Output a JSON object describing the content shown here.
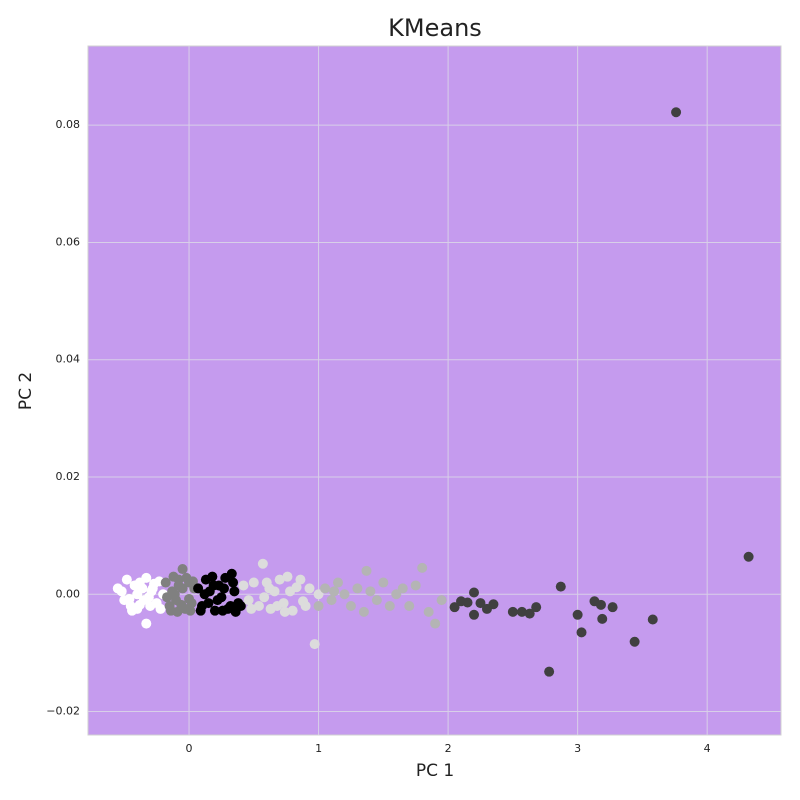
{
  "chart_data": {
    "type": "scatter",
    "title": "KMeans",
    "x_label": "PC 1",
    "y_label": "PC 2",
    "background": "#c59bee",
    "grid": true,
    "xlim": [
      -0.78,
      4.57
    ],
    "ylim": [
      -0.024,
      0.0935
    ],
    "xticks": [
      0,
      1,
      2,
      3,
      4
    ],
    "yticks": [
      {
        "value": -0.02,
        "label": "−0.02"
      },
      {
        "value": 0,
        "label": "0.00"
      },
      {
        "value": 0.02,
        "label": "0.02"
      },
      {
        "value": 0.04,
        "label": "0.04"
      },
      {
        "value": 0.06,
        "label": "0.06"
      },
      {
        "value": 0.08,
        "label": "0.08"
      }
    ],
    "series": [
      {
        "color": "#ffffff",
        "x": [
          -0.55,
          -0.5,
          -0.48,
          -0.45,
          -0.42,
          -0.4,
          -0.38,
          -0.35,
          -0.33,
          -0.3,
          -0.28,
          -0.25,
          -0.23,
          -0.2,
          -0.52,
          -0.46,
          -0.4,
          -0.36,
          -0.31,
          -0.27,
          -0.22,
          -0.33,
          -0.44,
          -0.38,
          -0.29
        ],
        "values": [
          0.001,
          -0.001,
          0.0025,
          -0.002,
          0.0015,
          -0.0025,
          0.002,
          -0.001,
          0.0028,
          -0.002,
          0.001,
          -0.0015,
          0.0022,
          0,
          0.0005,
          -0.0008,
          0,
          0.001,
          -0.0005,
          0.0018,
          -0.0025,
          -0.005,
          -0.0028,
          -0.0018,
          0.0005
        ]
      },
      {
        "color": "#808080",
        "x": [
          -0.18,
          -0.15,
          -0.12,
          -0.1,
          -0.08,
          -0.05,
          -0.03,
          0,
          0.02,
          0.04,
          -0.17,
          -0.13,
          -0.09,
          -0.06,
          -0.02,
          0.01,
          0.03,
          -0.11,
          -0.05,
          -0.14,
          -0.08,
          0
        ],
        "values": [
          0.002,
          -0.002,
          0.003,
          -0.001,
          0.0015,
          0.0043,
          -0.0025,
          0.002,
          -0.0015,
          0.001,
          -0.0005,
          0.0005,
          -0.003,
          -0.0018,
          0.0028,
          -0.0028,
          0.0022,
          0,
          0.001,
          -0.0028,
          0.0025,
          -0.0008
        ]
      },
      {
        "color": "#000000",
        "x": [
          0.07,
          0.1,
          0.13,
          0.15,
          0.18,
          0.2,
          0.23,
          0.25,
          0.28,
          0.3,
          0.33,
          0.35,
          0.38,
          0.4,
          0.09,
          0.16,
          0.22,
          0.27,
          0.32,
          0.12,
          0.19,
          0.26,
          0.34,
          0.36
        ],
        "values": [
          0.001,
          -0.002,
          0.0025,
          -0.0015,
          0.003,
          -0.0028,
          0.0015,
          -0.0005,
          0.0028,
          -0.0025,
          0.0035,
          0.0005,
          -0.0015,
          -0.002,
          -0.0028,
          0.0005,
          -0.001,
          0.001,
          -0.002,
          0,
          0.0015,
          -0.0028,
          0.002,
          -0.003
        ]
      },
      {
        "color": "#dcdcdc",
        "x": [
          0.42,
          0.46,
          0.5,
          0.54,
          0.57,
          0.6,
          0.63,
          0.66,
          0.7,
          0.73,
          0.76,
          0.8,
          0.83,
          0.86,
          0.9,
          0.93,
          0.97,
          1.0,
          0.48,
          0.58,
          0.68,
          0.78,
          0.88,
          0.62,
          0.74
        ],
        "values": [
          0.0015,
          -0.001,
          0.002,
          -0.002,
          0.0052,
          0.002,
          -0.0025,
          0.0005,
          0.0025,
          -0.0015,
          0.003,
          -0.0028,
          0.0012,
          0.0025,
          -0.002,
          0.001,
          -0.0085,
          0,
          -0.0025,
          -0.0005,
          -0.002,
          0.0005,
          -0.0012,
          0.001,
          -0.003
        ]
      },
      {
        "color": "#b4b4b4",
        "x": [
          1.0,
          1.05,
          1.1,
          1.12,
          1.15,
          1.2,
          1.25,
          1.3,
          1.35,
          1.37,
          1.4,
          1.45,
          1.5,
          1.55,
          1.6,
          1.65,
          1.7,
          1.75,
          1.8,
          1.85,
          1.9,
          1.95
        ],
        "values": [
          -0.002,
          0.001,
          -0.001,
          0.0005,
          0.002,
          0,
          -0.002,
          0.001,
          -0.003,
          0.004,
          0.0005,
          -0.001,
          0.002,
          -0.002,
          0,
          0.001,
          -0.002,
          0.0015,
          0.0045,
          -0.003,
          -0.005,
          -0.001
        ]
      },
      {
        "color": "#404040",
        "x": [
          3.76,
          4.32,
          2.87,
          2.05,
          2.1,
          2.15,
          2.2,
          2.25,
          2.3,
          2.35,
          2.2,
          2.5,
          2.57,
          2.63,
          2.68,
          2.78,
          3.0,
          3.03,
          3.13,
          3.18,
          3.19,
          3.27,
          3.44,
          3.58
        ],
        "values": [
          0.0822,
          0.0064,
          0.0013,
          -0.0022,
          -0.0012,
          -0.0014,
          0.0003,
          -0.0015,
          -0.0025,
          -0.0017,
          -0.0035,
          -0.003,
          -0.003,
          -0.0033,
          -0.0022,
          -0.0132,
          -0.0035,
          -0.0065,
          -0.0012,
          -0.0018,
          -0.0042,
          -0.0022,
          -0.0081,
          -0.0043
        ]
      }
    ]
  }
}
